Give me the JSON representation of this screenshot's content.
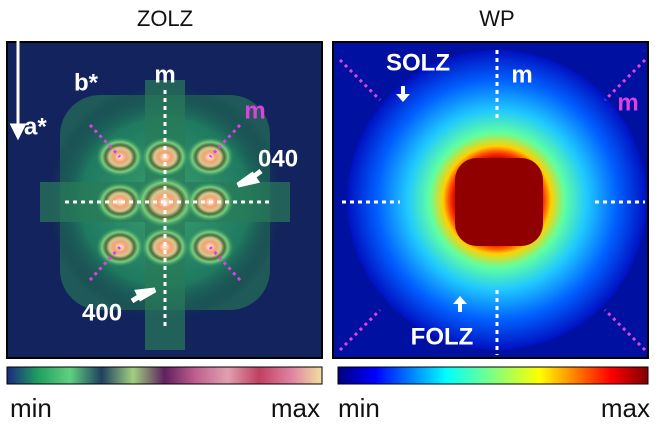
{
  "left_panel": {
    "title": "ZOLZ",
    "axis_b": "b*",
    "axis_a": "a*",
    "mirror_labels": [
      "m",
      "m"
    ],
    "reflections": [
      "040",
      "400"
    ],
    "colorbar": {
      "min": "min",
      "max": "max"
    }
  },
  "right_panel": {
    "title": "WP",
    "zone_labels": [
      "SOLZ",
      "FOLZ"
    ],
    "mirror_labels": [
      "m",
      "m"
    ],
    "colorbar": {
      "min": "min",
      "max": "max"
    }
  }
}
